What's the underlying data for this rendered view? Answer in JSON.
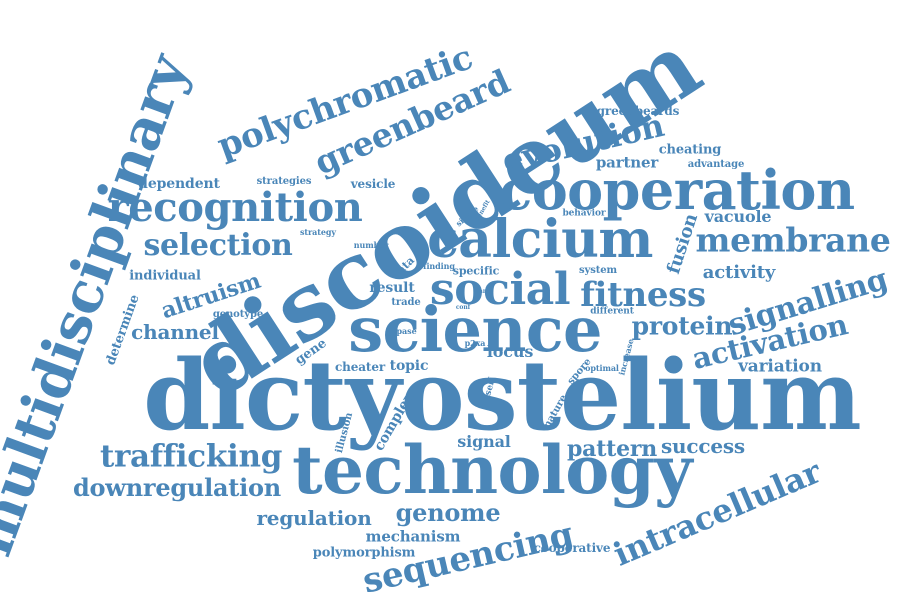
{
  "color": "#4a86b8",
  "words": [
    {
      "id": "dictyostelium",
      "text": "dictyostelium"
    },
    {
      "id": "discoideum",
      "text": "discoideum"
    },
    {
      "id": "technology",
      "text": "technology"
    },
    {
      "id": "science",
      "text": "science"
    },
    {
      "id": "multidisciplinary",
      "text": "multidisciplinary"
    },
    {
      "id": "cooperation",
      "text": "cooperation"
    },
    {
      "id": "calcium",
      "text": "calcium"
    },
    {
      "id": "social",
      "text": "social"
    },
    {
      "id": "recognition",
      "text": "recognition"
    },
    {
      "id": "membrane",
      "text": "membrane"
    },
    {
      "id": "polychromatic",
      "text": "polychromatic"
    },
    {
      "id": "greenbeard",
      "text": "greenbeard"
    },
    {
      "id": "sequencing",
      "text": "sequencing"
    },
    {
      "id": "intracellular",
      "text": "intracellular"
    },
    {
      "id": "evolution",
      "text": "evolution"
    },
    {
      "id": "fitness",
      "text": "fitness"
    },
    {
      "id": "signalling",
      "text": "signalling"
    },
    {
      "id": "activation",
      "text": "activation"
    },
    {
      "id": "selection",
      "text": "selection"
    },
    {
      "id": "trafficking",
      "text": "trafficking"
    },
    {
      "id": "downregulation",
      "text": "downregulation"
    },
    {
      "id": "protein",
      "text": "protein"
    },
    {
      "id": "genome",
      "text": "genome"
    },
    {
      "id": "regulation",
      "text": "regulation"
    },
    {
      "id": "pattern",
      "text": "pattern"
    },
    {
      "id": "success",
      "text": "success"
    },
    {
      "id": "altruism",
      "text": "altruism"
    },
    {
      "id": "channel",
      "text": "channel"
    },
    {
      "id": "activity",
      "text": "activity"
    },
    {
      "id": "fusion",
      "text": "fusion"
    },
    {
      "id": "vacuole",
      "text": "vacuole"
    },
    {
      "id": "variation",
      "text": "variation"
    },
    {
      "id": "locus",
      "text": "locus"
    },
    {
      "id": "signal",
      "text": "signal"
    },
    {
      "id": "topic",
      "text": "topic"
    },
    {
      "id": "result",
      "text": "result"
    },
    {
      "id": "mechanism",
      "text": "mechanism"
    },
    {
      "id": "polymorphism",
      "text": "polymorphism"
    },
    {
      "id": "partner",
      "text": "partner"
    },
    {
      "id": "cheating",
      "text": "cheating"
    },
    {
      "id": "dependent",
      "text": "dependent"
    },
    {
      "id": "individual",
      "text": "individual"
    },
    {
      "id": "complex",
      "text": "complex"
    },
    {
      "id": "cheater",
      "text": "cheater"
    },
    {
      "id": "cooperative",
      "text": "cooperative"
    },
    {
      "id": "greenbeards",
      "text": "greenbeards"
    },
    {
      "id": "determine",
      "text": "determine"
    },
    {
      "id": "gene",
      "text": "gene"
    },
    {
      "id": "specific",
      "text": "specific"
    },
    {
      "id": "vesicle",
      "text": "vesicle"
    },
    {
      "id": "advantage",
      "text": "advantage"
    },
    {
      "id": "strategies",
      "text": "strategies"
    },
    {
      "id": "genotype",
      "text": "genotype"
    },
    {
      "id": "behavior",
      "text": "behavior"
    },
    {
      "id": "data",
      "text": "data"
    },
    {
      "id": "trade",
      "text": "trade"
    },
    {
      "id": "system",
      "text": "system"
    },
    {
      "id": "different",
      "text": "different"
    },
    {
      "id": "nature",
      "text": "nature"
    },
    {
      "id": "spore",
      "text": "spore"
    },
    {
      "id": "optimal",
      "text": "optimal"
    },
    {
      "id": "increase",
      "text": "increase"
    },
    {
      "id": "illusion",
      "text": "illusion"
    },
    {
      "id": "self",
      "text": "self"
    },
    {
      "id": "p2xa",
      "text": "p2xa"
    },
    {
      "id": "gtpase",
      "text": "gtpase"
    },
    {
      "id": "strategy",
      "text": "strategy"
    },
    {
      "id": "number",
      "text": "number"
    },
    {
      "id": "finding",
      "text": "finding"
    },
    {
      "id": "single",
      "text": "single"
    },
    {
      "id": "benefit",
      "text": "benefit"
    },
    {
      "id": "band",
      "text": "band"
    },
    {
      "id": "conf",
      "text": "conf"
    }
  ]
}
